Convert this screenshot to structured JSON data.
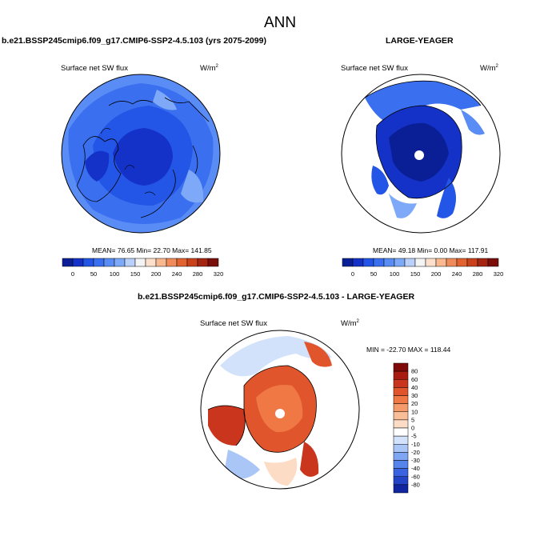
{
  "page": {
    "title": "ANN"
  },
  "panels": [
    {
      "id": "case",
      "title": "b.e21.BSSP245cmip6.f09_g17.CMIP6-SSP2-4.5.103 (yrs 2075-2099)",
      "variable": "Surface net SW flux",
      "units_base": "W/m",
      "units_exp": "2",
      "stats": "MEAN=  76.65  Min=  22.70  Max= 141.85"
    },
    {
      "id": "obs",
      "title": "LARGE-YEAGER",
      "variable": "Surface net SW flux",
      "units_base": "W/m",
      "units_exp": "2",
      "stats": "MEAN=  49.18  Min=   0.00  Max= 117.91"
    },
    {
      "id": "diff",
      "title": "b.e21.BSSP245cmip6.f09_g17.CMIP6-SSP2-4.5.103 - LARGE-YEAGER",
      "variable": "Surface net SW flux",
      "units_base": "W/m",
      "units_exp": "2",
      "stats": "MIN = -22.70 MAX = 118.44"
    }
  ],
  "chart_data": [
    {
      "type": "heatmap",
      "projection": "north-polar-stereographic",
      "title": "b.e21.BSSP245cmip6.f09_g17.CMIP6-SSP2-4.5.103 (yrs 2075-2099)",
      "variable": "Surface net SW flux",
      "units": "W/m2",
      "mean": 76.65,
      "min": 22.7,
      "max": 141.85,
      "colorbar": {
        "orientation": "horizontal",
        "levels": [
          0,
          25,
          50,
          75,
          100,
          125,
          150,
          175,
          200,
          220,
          240,
          260,
          280,
          300,
          320
        ],
        "tick_labels": [
          "0",
          "50",
          "100",
          "150",
          "200",
          "240",
          "280",
          "320"
        ],
        "colors": [
          "#0a1f96",
          "#1432c8",
          "#2355e6",
          "#3a70f0",
          "#5a8cf5",
          "#7ea8f8",
          "#b8d0fa",
          "#f4f4f4",
          "#fde0cc",
          "#f9b890",
          "#f08c5c",
          "#e2632f",
          "#c9421c",
          "#a42510",
          "#7a0f0a"
        ]
      }
    },
    {
      "type": "heatmap",
      "projection": "north-polar-stereographic",
      "title": "LARGE-YEAGER",
      "variable": "Surface net SW flux",
      "units": "W/m2",
      "mean": 49.18,
      "min": 0.0,
      "max": 117.91,
      "colorbar": {
        "orientation": "horizontal",
        "levels": [
          0,
          25,
          50,
          75,
          100,
          125,
          150,
          175,
          200,
          220,
          240,
          260,
          280,
          300,
          320
        ],
        "tick_labels": [
          "0",
          "50",
          "100",
          "150",
          "200",
          "240",
          "280",
          "320"
        ],
        "colors": [
          "#0a1f96",
          "#1432c8",
          "#2355e6",
          "#3a70f0",
          "#5a8cf5",
          "#7ea8f8",
          "#b8d0fa",
          "#f4f4f4",
          "#fde0cc",
          "#f9b890",
          "#f08c5c",
          "#e2632f",
          "#c9421c",
          "#a42510",
          "#7a0f0a"
        ]
      }
    },
    {
      "type": "heatmap",
      "projection": "north-polar-stereographic",
      "title": "b.e21.BSSP245cmip6.f09_g17.CMIP6-SSP2-4.5.103 - LARGE-YEAGER",
      "variable": "Surface net SW flux",
      "units": "W/m2",
      "min": -22.7,
      "max": 118.44,
      "colorbar": {
        "orientation": "vertical",
        "tick_labels": [
          "80",
          "60",
          "40",
          "30",
          "20",
          "10",
          "5",
          "0",
          "-5",
          "-10",
          "-20",
          "-30",
          "-40",
          "-60",
          "-80"
        ],
        "colors": [
          "#7e0a0a",
          "#a81c12",
          "#c9361d",
          "#e0552c",
          "#ef7845",
          "#f59a6b",
          "#f9bd98",
          "#fcdcc4",
          "#ffffff",
          "#d2e2fb",
          "#a9c6f7",
          "#7fa6f3",
          "#5584ec",
          "#3a63e2",
          "#2444c8",
          "#0f26a0"
        ]
      }
    }
  ]
}
